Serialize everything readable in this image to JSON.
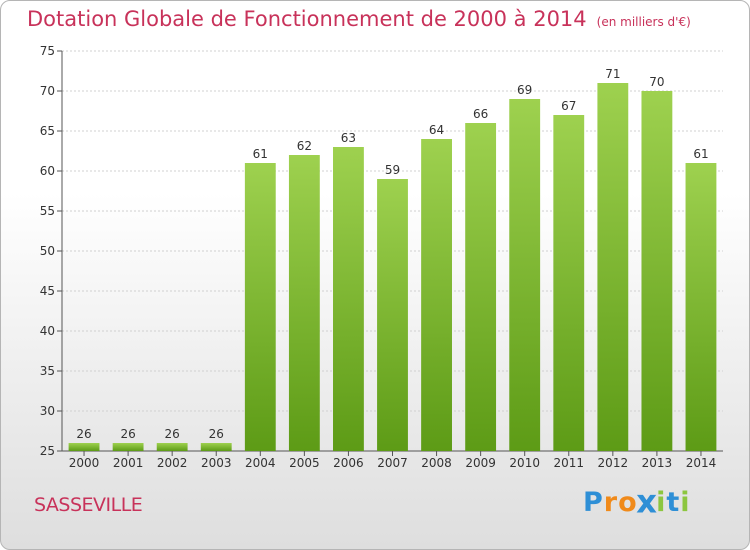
{
  "title": "Dotation Globale de Fonctionnement de 2000 à 2014",
  "unit": "(en milliers d'€)",
  "commune": "SASSEVILLE",
  "logo": [
    "P",
    "r",
    "o",
    "x",
    "i",
    "t",
    "i"
  ],
  "colors": {
    "title": "#c8325a",
    "bar_top": "#9ed14f",
    "bar_bottom": "#5d9b16",
    "axis": "#555555",
    "grid": "#d0d0d0"
  },
  "chart_data": {
    "type": "bar",
    "categories": [
      "2000",
      "2001",
      "2002",
      "2003",
      "2004",
      "2005",
      "2006",
      "2007",
      "2008",
      "2009",
      "2010",
      "2011",
      "2012",
      "2013",
      "2014"
    ],
    "values": [
      26,
      26,
      26,
      26,
      61,
      62,
      63,
      59,
      64,
      66,
      69,
      67,
      71,
      70,
      61
    ],
    "ylim": [
      25,
      75
    ],
    "yticks": [
      25,
      30,
      35,
      40,
      45,
      50,
      55,
      60,
      65,
      70,
      75
    ],
    "grid": true,
    "data_labels": true
  }
}
